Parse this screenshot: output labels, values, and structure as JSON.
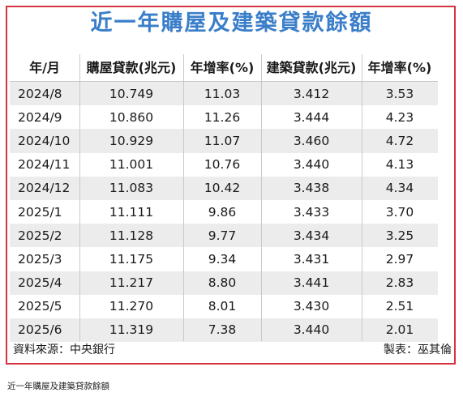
{
  "title": "近一年購屋及建築貸款餘額",
  "chart_data": {
    "type": "table",
    "title": "近一年購屋及建築貸款餘額",
    "columns": [
      "年/月",
      "購屋貸款(兆元)",
      "年增率(%)",
      "建築貸款(兆元)",
      "年增率(%)"
    ],
    "rows": [
      [
        "2024/8",
        "10.749",
        "11.03",
        "3.412",
        "3.53"
      ],
      [
        "2024/9",
        "10.860",
        "11.26",
        "3.444",
        "4.23"
      ],
      [
        "2024/10",
        "10.929",
        "11.07",
        "3.460",
        "4.72"
      ],
      [
        "2024/11",
        "11.001",
        "10.76",
        "3.440",
        "4.13"
      ],
      [
        "2024/12",
        "11.083",
        "10.42",
        "3.438",
        "4.34"
      ],
      [
        "2025/1",
        "11.111",
        "9.86",
        "3.433",
        "3.70"
      ],
      [
        "2025/2",
        "11.128",
        "9.77",
        "3.434",
        "3.25"
      ],
      [
        "2025/3",
        "11.175",
        "9.34",
        "3.431",
        "2.97"
      ],
      [
        "2025/4",
        "11.217",
        "8.80",
        "3.441",
        "2.83"
      ],
      [
        "2025/5",
        "11.270",
        "8.01",
        "3.430",
        "2.51"
      ],
      [
        "2025/6",
        "11.319",
        "7.38",
        "3.440",
        "2.01"
      ]
    ]
  },
  "footer": {
    "source": "資料來源：中央銀行",
    "maker": "製表：巫其倫"
  },
  "caption": "近一年購屋及建築貸款餘額",
  "colors": {
    "title": "#3a7ec9",
    "border": "#d4333f",
    "stripe": "#ececec"
  }
}
